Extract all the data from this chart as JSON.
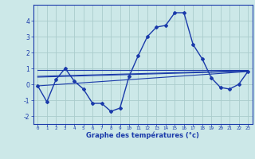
{
  "x": [
    0,
    1,
    2,
    3,
    4,
    5,
    6,
    7,
    8,
    9,
    10,
    11,
    12,
    13,
    14,
    15,
    16,
    17,
    18,
    19,
    20,
    21,
    22,
    23
  ],
  "temp_curve": [
    -0.1,
    -1.1,
    0.3,
    1.0,
    0.2,
    -0.3,
    -1.2,
    -1.2,
    -1.7,
    -1.5,
    0.5,
    1.8,
    3.0,
    3.6,
    3.7,
    4.5,
    4.5,
    2.5,
    1.6,
    0.4,
    -0.2,
    -0.3,
    0.0,
    0.8
  ],
  "diag_line": [
    [
      -0.1,
      0.8
    ],
    [
      0,
      23
    ]
  ],
  "flat_line1": [
    [
      0.9,
      0.9
    ],
    [
      0,
      23
    ]
  ],
  "flat_line2": [
    [
      0.5,
      0.85
    ],
    [
      0,
      23
    ]
  ],
  "flat_line3": [
    [
      0.45,
      0.82
    ],
    [
      0,
      23
    ]
  ],
  "bg_color": "#cce8e8",
  "grid_color": "#aacccc",
  "line_color": "#1a3aaa",
  "xlabel": "Graphe des températures (°c)",
  "ylim": [
    -2.5,
    5.0
  ],
  "xlim": [
    -0.5,
    23.5
  ],
  "yticks": [
    -2,
    -1,
    0,
    1,
    2,
    3,
    4
  ],
  "ytick_labels": [
    "-2",
    "-1",
    "0",
    "1",
    "2",
    "3",
    "4"
  ],
  "xtick_labels": [
    "0",
    "1",
    "2",
    "3",
    "4",
    "5",
    "6",
    "7",
    "8",
    "9",
    "10",
    "11",
    "12",
    "13",
    "14",
    "15",
    "16",
    "17",
    "18",
    "19",
    "20",
    "21",
    "22",
    "23"
  ]
}
